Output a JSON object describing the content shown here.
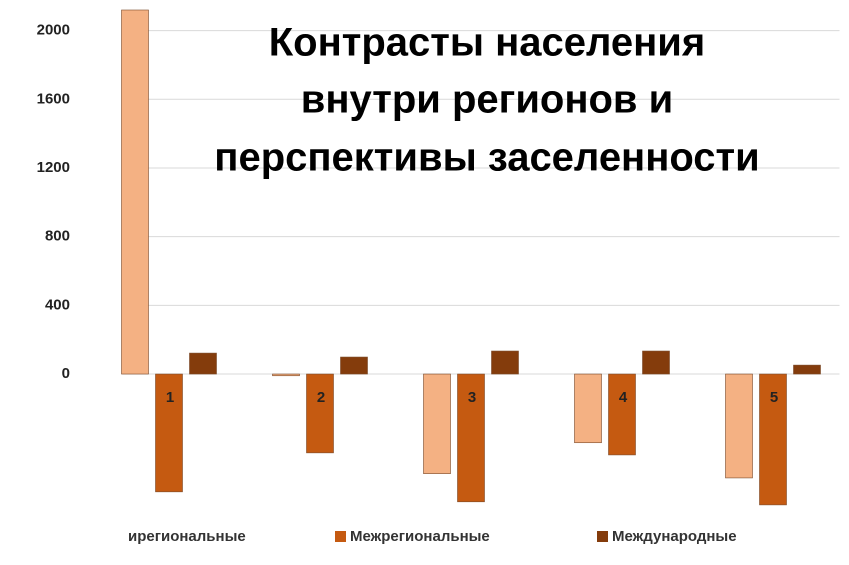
{
  "chart_data": {
    "type": "bar",
    "title_lines": [
      "Контрасты населения",
      "внутри регионов и",
      "перспективы заселенности"
    ],
    "categories": [
      "1",
      "2",
      "3",
      "4",
      "5"
    ],
    "series": [
      {
        "name": "ирегиональные",
        "color": "#F4B183",
        "values": [
          2120,
          -10,
          -580,
          -400,
          -605
        ]
      },
      {
        "name": "Межрегиональные",
        "color": "#C55A11",
        "values": [
          -686,
          -459,
          -744,
          -471,
          -762
        ]
      },
      {
        "name": "Международные",
        "color": "#843C0C",
        "values": [
          122,
          99,
          134,
          134,
          52
        ]
      }
    ],
    "ylim": [
      -850,
      2120
    ],
    "yticks": [
      0,
      400,
      800,
      1200,
      1600,
      2000
    ],
    "grid": true
  }
}
